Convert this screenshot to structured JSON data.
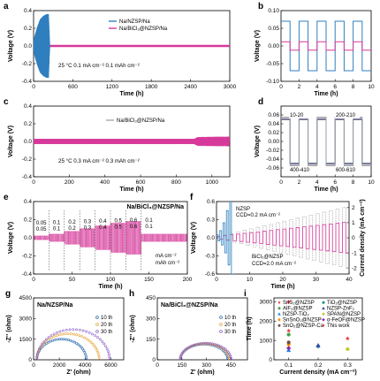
{
  "chart_data": [
    {
      "id": "a",
      "type": "line",
      "panel_label": "a",
      "xlabel": "Time (h)",
      "ylabel": "Voltage (V)",
      "xlim": [
        0,
        3000
      ],
      "ylim": [
        -0.4,
        0.4
      ],
      "xticks": [
        0,
        600,
        1200,
        1800,
        2400,
        3000
      ],
      "yticks": [
        -0.4,
        -0.2,
        0.0,
        0.2,
        0.4
      ],
      "series": [
        {
          "name": "Na/NZSP/Na",
          "color": "#2f7fbf",
          "x": [
            0,
            20,
            60,
            100,
            150,
            200,
            230,
            250
          ],
          "amplitude": [
            0.05,
            0.12,
            0.22,
            0.3,
            0.34,
            0.36,
            0.36,
            0.0
          ]
        },
        {
          "name": "Na/BiCl₃@NZSP/Na",
          "color": "#d6399a",
          "x": [
            0,
            3000
          ],
          "amplitude": [
            0.012,
            0.012
          ]
        }
      ],
      "annotation": "25 °C    0.1 mA cm⁻²   0.1 mAh cm⁻²"
    },
    {
      "id": "b",
      "type": "line",
      "panel_label": "b",
      "xlabel": "Time (h)",
      "ylabel": "Voltage (V)",
      "xlim": [
        0,
        10
      ],
      "ylim": [
        -0.1,
        0.1
      ],
      "xticks": [
        0,
        2,
        4,
        6,
        8,
        10
      ],
      "yticks": [
        -0.1,
        -0.05,
        0.0,
        0.05,
        0.1
      ],
      "series": [
        {
          "name": "Na/NZSP/Na",
          "color": "#2f7fbf",
          "period_h": 2,
          "amplitude": 0.07
        },
        {
          "name": "Na/BiCl₃@NZSP/Na",
          "color": "#d6399a",
          "period_h": 2,
          "amplitude": 0.012
        }
      ]
    },
    {
      "id": "c",
      "type": "line",
      "panel_label": "c",
      "xlabel": "Time (h)",
      "ylabel": "Voltage (V)",
      "xlim": [
        0,
        1100
      ],
      "ylim": [
        -0.4,
        0.4
      ],
      "xticks": [
        0,
        200,
        400,
        600,
        800,
        1000
      ],
      "yticks": [
        -0.4,
        -0.2,
        0.0,
        0.2,
        0.4
      ],
      "series": [
        {
          "name": "Na/BiCl₃@NZSP/Na",
          "color": "#d6399a",
          "x": [
            0,
            900,
            920,
            1100
          ],
          "amplitude": [
            0.03,
            0.03,
            0.05,
            0.055
          ]
        }
      ],
      "annotation": "25 °C    0.3 mA cm⁻²   0.3 mAh cm⁻²"
    },
    {
      "id": "d",
      "type": "line",
      "panel_label": "d",
      "xlabel": "Time (h)",
      "ylabel": "Voltage (V)",
      "xlim": [
        0,
        10
      ],
      "ylim": [
        -0.08,
        0.08
      ],
      "xticks": [
        0,
        2,
        4,
        6,
        8,
        10
      ],
      "yticks": [
        -0.06,
        -0.04,
        -0.02,
        0.0,
        0.02,
        0.04,
        0.06
      ],
      "series": [
        {
          "name": "10-20",
          "color": "#9a9a9a",
          "amplitude": 0.052
        },
        {
          "name": "200-210",
          "color": "#4caf50",
          "amplitude": 0.049
        },
        {
          "name": "400-410",
          "color": "#7e57c2",
          "amplitude": 0.05
        },
        {
          "name": "600-610",
          "color": "#a0a0a0",
          "amplitude": 0.055
        }
      ]
    },
    {
      "id": "e",
      "type": "line",
      "panel_label": "e",
      "xlabel": "Time (h)",
      "ylabel": "Voltage (V)",
      "xlim": [
        0,
        200
      ],
      "ylim": [
        -0.4,
        0.4
      ],
      "xticks": [
        0,
        50,
        100,
        150,
        200
      ],
      "yticks": [
        -0.4,
        -0.2,
        0.0,
        0.2,
        0.4
      ],
      "title": "Na/BiCl₃@NZSP/Na",
      "steps": [
        {
          "x0": 0,
          "x1": 20,
          "amplitude": 0.02,
          "label_top": "0.05",
          "label_bottom": "0.05"
        },
        {
          "x0": 20,
          "x1": 40,
          "amplitude": 0.04,
          "label_top": "0.1",
          "label_bottom": "0.1"
        },
        {
          "x0": 40,
          "x1": 60,
          "amplitude": 0.07,
          "label_top": "0.2",
          "label_bottom": "0.2"
        },
        {
          "x0": 60,
          "x1": 80,
          "amplitude": 0.1,
          "label_top": "0.3",
          "label_bottom": "0.3"
        },
        {
          "x0": 80,
          "x1": 100,
          "amplitude": 0.13,
          "label_top": "0.4",
          "label_bottom": "0.4"
        },
        {
          "x0": 100,
          "x1": 120,
          "amplitude": 0.16,
          "label_top": "0.5",
          "label_bottom": "0.5"
        },
        {
          "x0": 120,
          "x1": 140,
          "amplitude": 0.18,
          "label_top": "0.6",
          "label_bottom": "0.6"
        },
        {
          "x0": 140,
          "x1": 200,
          "amplitude": 0.04,
          "label_top": "0.1",
          "label_bottom": "0.1"
        }
      ],
      "unit_top": "mA cm⁻²",
      "unit_bottom": "mAh cm⁻²",
      "color": "#d6399a"
    },
    {
      "id": "f",
      "type": "line",
      "panel_label": "f",
      "xlabel": "Time (h)",
      "ylabel": "Voltage (V)",
      "ylabel_right": "Current density (mA cm⁻²)",
      "xlim": [
        0,
        40
      ],
      "ylim": [
        -0.6,
        0.6
      ],
      "ylim_right": [
        -2.4,
        2.4
      ],
      "xticks": [
        0,
        10,
        20,
        30,
        40
      ],
      "yticks": [
        -0.6,
        -0.3,
        0.0,
        0.3,
        0.6
      ],
      "yticks_right": [
        -2,
        -1,
        0,
        1,
        2
      ],
      "series": [
        {
          "name": "NZSP",
          "ccd_label": "CCD=0.2 mA cm⁻²",
          "color": "#3a8ac4",
          "x_end": 5
        },
        {
          "name": "BiCl₃@NZSP",
          "ccd_label": "CCD=2.0 mA cm⁻²",
          "color": "#d6399a",
          "x_end": 40
        }
      ],
      "current_color": "#999999"
    },
    {
      "id": "g",
      "type": "scatter",
      "panel_label": "g",
      "xlabel": "Z' (ohm)",
      "ylabel": "-Z'' (ohm)",
      "xlim": [
        0,
        7000
      ],
      "ylim": [
        0,
        4500
      ],
      "xticks": [
        0,
        2000,
        4000,
        6000
      ],
      "yticks": [
        0,
        1500,
        3000,
        4500
      ],
      "title": "Na/NZSP/Na",
      "series": [
        {
          "name": "10 th",
          "color": "#2b6cb0",
          "r0": 250,
          "r1": 4100
        },
        {
          "name": "20 th",
          "color": "#e8a33d",
          "r0": 250,
          "r1": 5100
        },
        {
          "name": "30 th",
          "color": "#8a5fc9",
          "r0": 250,
          "r1": 5900
        }
      ]
    },
    {
      "id": "h",
      "type": "scatter",
      "panel_label": "h",
      "xlabel": "Z' (ohm)",
      "ylabel": "-Z'' (ohm)",
      "xlim": [
        0,
        550
      ],
      "ylim": [
        0,
        450
      ],
      "xticks": [
        0,
        150,
        300,
        450
      ],
      "yticks": [
        0,
        150,
        300,
        450
      ],
      "title": "Na/BiCl₃@NZSP/Na",
      "series": [
        {
          "name": "10 th",
          "color": "#2b6cb0",
          "r0": 140,
          "r1": 430
        },
        {
          "name": "20 th",
          "color": "#e8a33d",
          "r0": 140,
          "r1": 440
        },
        {
          "name": "30 th",
          "color": "#8a5fc9",
          "r0": 140,
          "r1": 450
        }
      ]
    },
    {
      "id": "i",
      "type": "scatter",
      "panel_label": "i",
      "xlabel": "Current density (mA cm⁻²)",
      "ylabel": "Time (h)",
      "xlim": [
        0.05,
        0.35
      ],
      "ylim": [
        0,
        3200
      ],
      "xticks": [
        0.1,
        0.2,
        0.3
      ],
      "yticks": [
        0,
        1000,
        2000,
        3000
      ],
      "points": [
        {
          "name": "SnS₂@NZSP",
          "color": "#e53935",
          "marker": "star",
          "x": 0.1,
          "y": 1500
        },
        {
          "name": "AlF₃@NZSP",
          "color": "#43a047",
          "marker": "circle",
          "x": 0.1,
          "y": 1300
        },
        {
          "name": "NZSP-TiO₂",
          "color": "#1e88e5",
          "marker": "triangle",
          "x": 0.1,
          "y": 500
        },
        {
          "name": "SnSnO₂@NZSP",
          "color": "#fb8c00",
          "marker": "circle",
          "x": 0.1,
          "y": 800
        },
        {
          "name": "α-FeOF@NZSP",
          "color": "#8e24aa",
          "marker": "diamond",
          "x": 0.1,
          "y": 600
        },
        {
          "name": "SnO₂@NZSP-Ca",
          "color": "#6d4c41",
          "marker": "circle",
          "x": 0.1,
          "y": 900
        },
        {
          "name": "TiO₂@NZSP",
          "color": "#00897b",
          "marker": "circle",
          "x": 0.2,
          "y": 700
        },
        {
          "name": "NZSP-ZnF₂",
          "color": "#3949ab",
          "marker": "triangle",
          "x": 0.2,
          "y": 750
        },
        {
          "name": "SPAN@NZSP",
          "color": "#c0ca33",
          "marker": "circle",
          "x": 0.3,
          "y": 550
        },
        {
          "name": "This work",
          "color": "#e53935",
          "marker": "star",
          "x": 0.1,
          "y": 3000
        },
        {
          "name": "This work 0.3",
          "color": "#e53935",
          "marker": "star",
          "x": 0.3,
          "y": 1100
        }
      ],
      "legend": [
        "SnS₂@NZSP",
        "TiO₂@NZSP",
        "AlF₃@NZSP",
        "NZSP-ZnF₂",
        "NZSP-TiO₂",
        "SPAN@NZSP",
        "SnSnO₂@NZSP",
        "α-FeOF@NZSP",
        "SnO₂@NZSP-Ca",
        "This work"
      ]
    }
  ]
}
